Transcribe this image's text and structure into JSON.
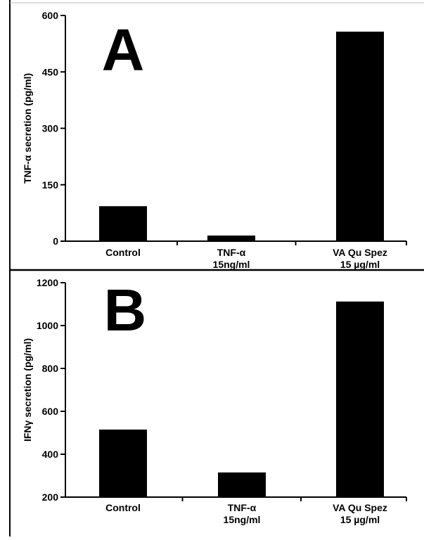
{
  "chart_data": [
    {
      "type": "bar",
      "panel_label": "A",
      "title": "",
      "xlabel": "",
      "ylabel": "TNF-α secretion (pg/ml)",
      "ylim": [
        0,
        600
      ],
      "yticks": [
        0,
        150,
        300,
        450,
        600
      ],
      "ytick_labels": [
        "0",
        "150",
        "300",
        "450",
        "600"
      ],
      "categories": [
        [
          "Control"
        ],
        [
          "TNF-α",
          "15ng/ml"
        ],
        [
          "VA Qu Spez",
          "15 µg/ml"
        ]
      ],
      "values": [
        93,
        15,
        557
      ],
      "bar_color": "#000000",
      "grid": false,
      "legend": "none"
    },
    {
      "type": "bar",
      "panel_label": "B",
      "title": "",
      "xlabel": "",
      "ylabel": "IFNγ secretion (pg/ml)",
      "ylim": [
        200,
        1200
      ],
      "yticks": [
        200,
        400,
        600,
        800,
        1000,
        1200
      ],
      "ytick_labels": [
        "200",
        "400",
        "600",
        "800",
        "1000",
        "1200"
      ],
      "categories": [
        [
          "Control"
        ],
        [
          "TNF-α",
          "15ng/ml"
        ],
        [
          "VA Qu Spez",
          "15 µg/ml"
        ]
      ],
      "values": [
        515,
        315,
        1112
      ],
      "bar_color": "#000000",
      "grid": false,
      "legend": "none"
    }
  ]
}
